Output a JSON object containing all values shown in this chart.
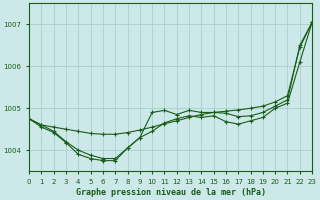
{
  "title": "Graphe pression niveau de la mer (hPa)",
  "bg_color": "#cce8e8",
  "line_color": "#1a5c1a",
  "grid_color": "#aad0d0",
  "xmin": 0,
  "xmax": 23,
  "ymin": 1003.5,
  "ymax": 1007.5,
  "yticks": [
    1004,
    1005,
    1006,
    1007
  ],
  "series_straight": [
    1004.75,
    1004.6,
    1004.55,
    1004.5,
    1004.45,
    1004.4,
    1004.38,
    1004.38,
    1004.42,
    1004.48,
    1004.55,
    1004.63,
    1004.7,
    1004.78,
    1004.85,
    1004.9,
    1004.93,
    1004.96,
    1005.0,
    1005.05,
    1005.15,
    1005.3,
    1006.45,
    1007.05
  ],
  "series_mid": [
    1004.75,
    1004.6,
    1004.45,
    1004.2,
    1004.0,
    1003.88,
    1003.8,
    1003.8,
    1004.05,
    1004.3,
    1004.9,
    1004.95,
    1004.85,
    1004.95,
    1004.9,
    1004.9,
    1004.88,
    1004.8,
    1004.82,
    1004.9,
    1005.05,
    1005.2,
    1006.5,
    1007.05
  ],
  "series_low": [
    1004.75,
    1004.55,
    1004.42,
    1004.18,
    1003.9,
    1003.8,
    1003.75,
    1003.75,
    1004.05,
    1004.3,
    1004.45,
    1004.65,
    1004.75,
    1004.82,
    1004.78,
    1004.82,
    1004.68,
    1004.62,
    1004.7,
    1004.78,
    1005.0,
    1005.12,
    1006.1,
    1007.05
  ]
}
